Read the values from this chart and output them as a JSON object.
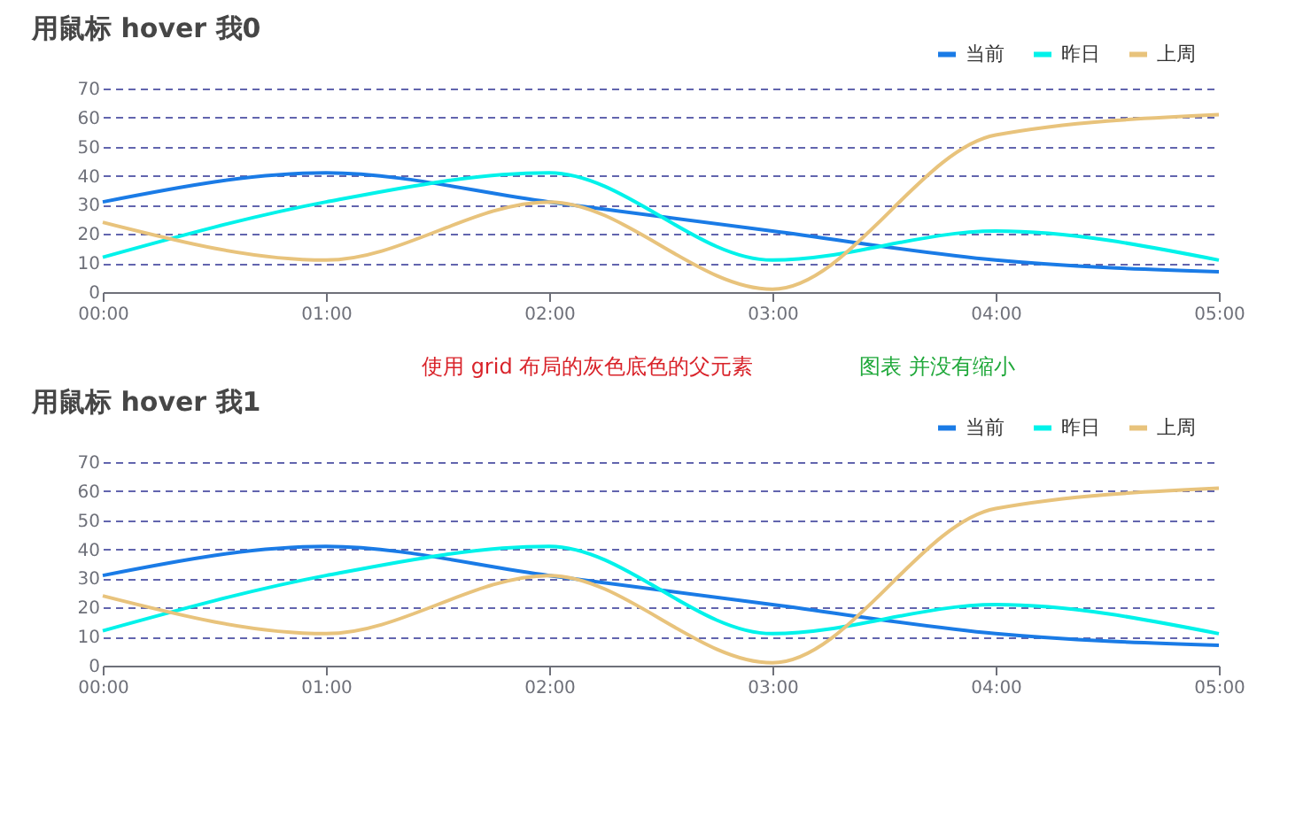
{
  "chart_data": [
    {
      "type": "line",
      "title": "用鼠标 hover 我0",
      "categories": [
        "00:00",
        "01:00",
        "02:00",
        "03:00",
        "04:00",
        "05:00"
      ],
      "series": [
        {
          "name": "当前",
          "color": "#1a7be6",
          "values": [
            31,
            41,
            31,
            21,
            11,
            7
          ]
        },
        {
          "name": "昨日",
          "color": "#00f2ea",
          "values": [
            12,
            31,
            41,
            11,
            21,
            11
          ]
        },
        {
          "name": "上周",
          "color": "#e8c37c",
          "values": [
            24,
            11,
            31,
            1,
            54,
            61
          ]
        }
      ],
      "ylim": [
        0,
        70
      ],
      "yticks": [
        0,
        10,
        20,
        30,
        40,
        50,
        60,
        70
      ],
      "grid": "y",
      "legend": "top right",
      "marker": "none",
      "line_style": "solid",
      "annotations": [
        "使用 grid 布局的灰色底色的父元素",
        "图表 并没有缩小"
      ]
    },
    {
      "type": "line",
      "title": "用鼠标 hover 我1",
      "categories": [
        "00:00",
        "01:00",
        "02:00",
        "03:00",
        "04:00",
        "05:00"
      ],
      "series": [
        {
          "name": "当前",
          "color": "#1a7be6",
          "values": [
            31,
            41,
            31,
            21,
            11,
            7
          ]
        },
        {
          "name": "昨日",
          "color": "#00f2ea",
          "values": [
            12,
            31,
            41,
            11,
            21,
            11
          ]
        },
        {
          "name": "上周",
          "color": "#e8c37c",
          "values": [
            24,
            11,
            31,
            1,
            54,
            61
          ]
        }
      ],
      "ylim": [
        0,
        70
      ],
      "yticks": [
        0,
        10,
        20,
        30,
        40,
        50,
        60,
        70
      ],
      "grid": "y",
      "legend": "top right",
      "marker": "none",
      "line_style": "solid"
    }
  ]
}
